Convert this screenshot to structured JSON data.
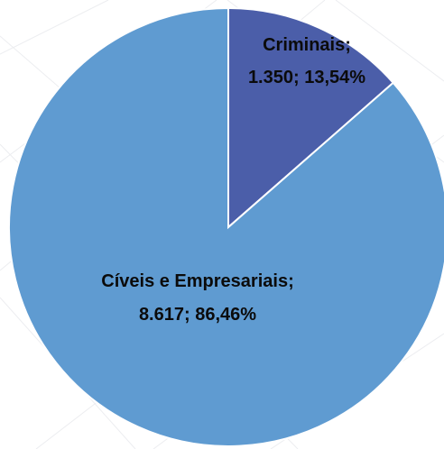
{
  "chart_data": {
    "type": "pie",
    "title": "",
    "start_angle_deg": 0,
    "direction": "clockwise",
    "slices": [
      {
        "category": "Criminais",
        "value": 1350,
        "percent": 13.54,
        "label_lines": [
          "Criminais;",
          "1.350; 13,54%"
        ],
        "color": "#4b5ea9"
      },
      {
        "category": "Cíveis e Empresariais",
        "value": 8617,
        "percent": 86.46,
        "label_lines": [
          "Cíveis e Empresariais;",
          "8.617; 86,46%"
        ],
        "color": "#5f9bd1"
      }
    ],
    "legend": "none",
    "data_labels": true
  }
}
